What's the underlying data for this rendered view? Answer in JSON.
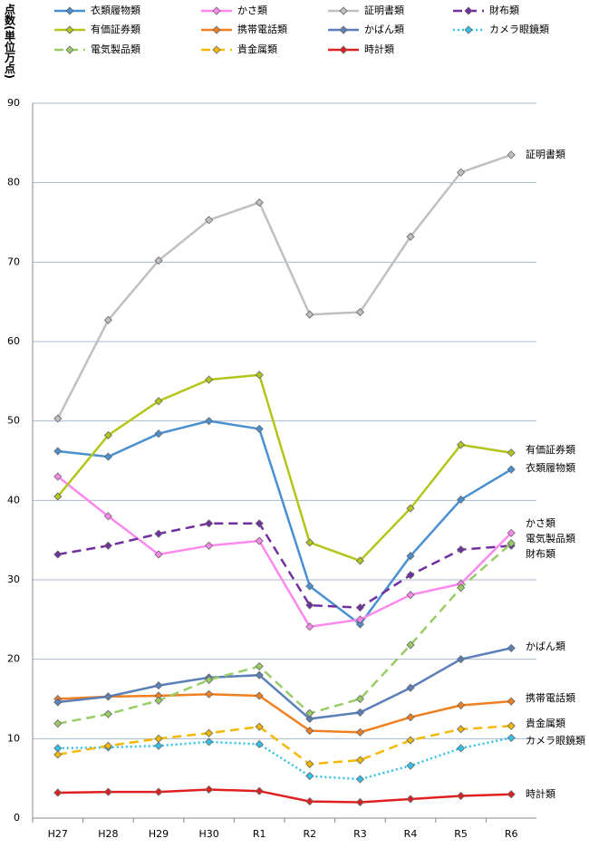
{
  "chart_data": {
    "type": "line",
    "y_label": "点数(単位万点)",
    "categories": [
      "H27",
      "H28",
      "H29",
      "H30",
      "R1",
      "R2",
      "R3",
      "R4",
      "R5",
      "R6"
    ],
    "ylim": [
      0,
      90
    ],
    "yticks": [
      0,
      10,
      20,
      30,
      40,
      50,
      60,
      70,
      80,
      90
    ],
    "grid": true,
    "series": [
      {
        "name": "衣類履物類",
        "color": "#4a90d0",
        "style": "solid",
        "values": [
          46.2,
          45.5,
          48.4,
          50.0,
          49.0,
          29.2,
          24.4,
          33.0,
          40.1,
          43.9
        ]
      },
      {
        "name": "かさ類",
        "color": "#ff88ee",
        "style": "solid",
        "values": [
          43.0,
          38.0,
          33.2,
          34.3,
          34.9,
          24.1,
          25.0,
          28.1,
          29.5,
          35.9
        ]
      },
      {
        "name": "証明書類",
        "color": "#c0c0c0",
        "style": "solid",
        "values": [
          50.3,
          62.7,
          70.2,
          75.3,
          77.5,
          63.4,
          63.7,
          73.2,
          81.3,
          83.5
        ]
      },
      {
        "name": "財布類",
        "color": "#7030a0",
        "style": "dashed",
        "values": [
          33.2,
          34.3,
          35.8,
          37.1,
          37.1,
          26.8,
          26.5,
          30.6,
          33.8,
          34.3
        ]
      },
      {
        "name": "有価証券類",
        "color": "#b4c51a",
        "style": "solid",
        "values": [
          40.5,
          48.2,
          52.5,
          55.2,
          55.8,
          34.7,
          32.4,
          39.0,
          47.0,
          46.0
        ]
      },
      {
        "name": "携帯電話類",
        "color": "#f07f20",
        "style": "solid",
        "values": [
          15.0,
          15.3,
          15.4,
          15.6,
          15.4,
          11.0,
          10.8,
          12.7,
          14.2,
          14.7
        ]
      },
      {
        "name": "かばん類",
        "color": "#5b7fb8",
        "style": "solid",
        "values": [
          14.6,
          15.3,
          16.7,
          17.7,
          18.0,
          12.5,
          13.3,
          16.4,
          20.0,
          21.4
        ]
      },
      {
        "name": "カメラ眼鏡類",
        "color": "#33c0e8",
        "style": "dotted",
        "values": [
          8.8,
          8.9,
          9.1,
          9.6,
          9.3,
          5.3,
          4.9,
          6.6,
          8.8,
          10.1
        ]
      },
      {
        "name": "電気製品類",
        "color": "#99cc66",
        "style": "dashed",
        "values": [
          11.9,
          13.1,
          14.8,
          17.4,
          19.1,
          13.2,
          15.0,
          21.8,
          29.0,
          34.6
        ]
      },
      {
        "name": "貴金属類",
        "color": "#f5b800",
        "style": "dashed",
        "values": [
          8.0,
          9.1,
          10.0,
          10.7,
          11.5,
          6.8,
          7.3,
          9.8,
          11.2,
          11.6
        ]
      },
      {
        "name": "時計類",
        "color": "#e02020",
        "style": "solid",
        "values": [
          3.2,
          3.3,
          3.3,
          3.6,
          3.4,
          2.1,
          2.0,
          2.4,
          2.8,
          3.0
        ]
      }
    ]
  }
}
